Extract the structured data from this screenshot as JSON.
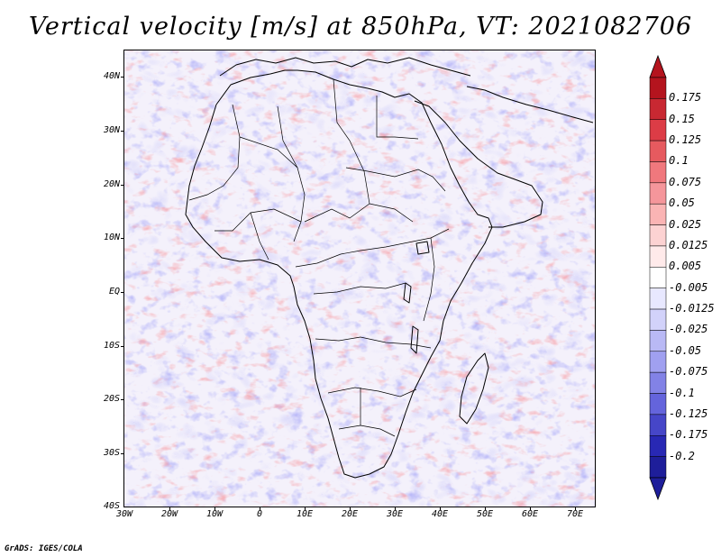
{
  "title": "Vertical velocity [m/s] at 850hPa, VT: 2021082706",
  "footer": "GrADS: IGES/COLA",
  "map": {
    "region": "Africa",
    "variable": "vertical velocity",
    "units": "m/s",
    "level": "850hPa",
    "valid_time": "2021082706",
    "lon_range": [
      -30,
      75
    ],
    "lat_range": [
      -40,
      45
    ]
  },
  "lat_ticks": [
    {
      "value": 40,
      "label": "40N"
    },
    {
      "value": 30,
      "label": "30N"
    },
    {
      "value": 20,
      "label": "20N"
    },
    {
      "value": 10,
      "label": "10N"
    },
    {
      "value": 0,
      "label": "EQ"
    },
    {
      "value": -10,
      "label": "10S"
    },
    {
      "value": -20,
      "label": "20S"
    },
    {
      "value": -30,
      "label": "30S"
    },
    {
      "value": -40,
      "label": "40S"
    }
  ],
  "lon_ticks": [
    {
      "value": -30,
      "label": "30W"
    },
    {
      "value": -20,
      "label": "20W"
    },
    {
      "value": -10,
      "label": "10W"
    },
    {
      "value": 0,
      "label": "0"
    },
    {
      "value": 10,
      "label": "10E"
    },
    {
      "value": 20,
      "label": "20E"
    },
    {
      "value": 30,
      "label": "30E"
    },
    {
      "value": 40,
      "label": "40E"
    },
    {
      "value": 50,
      "label": "50E"
    },
    {
      "value": 60,
      "label": "60E"
    },
    {
      "value": 70,
      "label": "70E"
    }
  ],
  "colorbar": {
    "labels": [
      "0.175",
      "0.15",
      "0.125",
      "0.1",
      "0.075",
      "0.05",
      "0.025",
      "0.0125",
      "0.005",
      "-0.005",
      "-0.0125",
      "-0.025",
      "-0.05",
      "-0.075",
      "-0.1",
      "-0.125",
      "-0.175",
      "-0.2"
    ],
    "colors": [
      "#b4141e",
      "#c82832",
      "#dc3c46",
      "#e65a5f",
      "#f0787d",
      "#f5969b",
      "#fab4b4",
      "#fcd2d2",
      "#ffeaea",
      "#ffffff",
      "#e8e8ff",
      "#d2d2fa",
      "#b9b9f5",
      "#a0a0f0",
      "#8282e6",
      "#6464dc",
      "#4646c8",
      "#2828b4",
      "#1e1e9a"
    ]
  }
}
